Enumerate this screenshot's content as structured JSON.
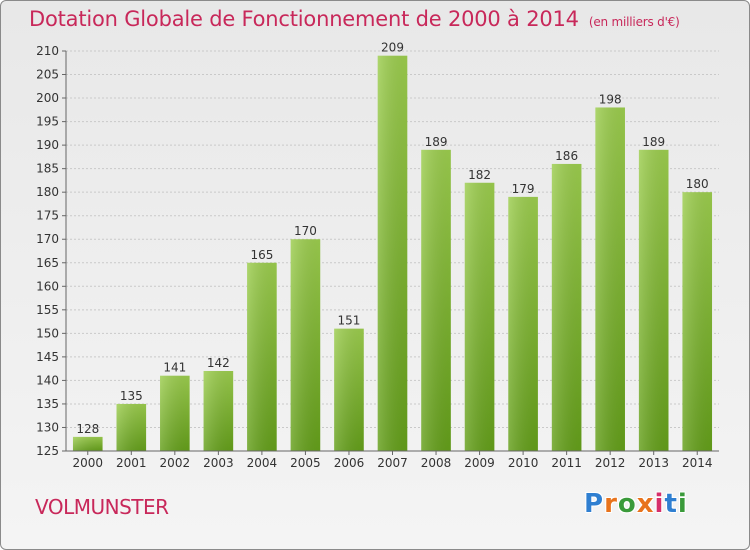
{
  "header": {
    "title": "Dotation Globale de Fonctionnement de 2000 à 2014",
    "subtitle": "(en milliers d'€)"
  },
  "footer": {
    "place": "VOLMUNSTER",
    "logo": {
      "letters": [
        "P",
        "r",
        "o",
        "x",
        "i",
        "t",
        "i"
      ],
      "colors": [
        "#2f7fd1",
        "#e8731c",
        "#3a9a3a",
        "#e8731c",
        "#d62f6a",
        "#2f7fd1",
        "#3a9a3a"
      ]
    }
  },
  "chart_data": {
    "type": "bar",
    "title": "Dotation Globale de Fonctionnement de 2000 à 2014",
    "subtitle": "(en milliers d'€)",
    "xlabel": "",
    "ylabel": "",
    "categories": [
      "2000",
      "2001",
      "2002",
      "2003",
      "2004",
      "2005",
      "2006",
      "2007",
      "2008",
      "2009",
      "2010",
      "2011",
      "2012",
      "2013",
      "2014"
    ],
    "values": [
      128,
      135,
      141,
      142,
      165,
      170,
      151,
      209,
      189,
      182,
      179,
      186,
      198,
      189,
      180
    ],
    "ylim": [
      125,
      210
    ],
    "yticks": [
      125,
      130,
      135,
      140,
      145,
      150,
      155,
      160,
      165,
      170,
      175,
      180,
      185,
      190,
      195,
      200,
      205,
      210
    ],
    "grid": true,
    "bar_color_top": "#9ccd4e",
    "bar_color_bottom": "#649f1a"
  }
}
